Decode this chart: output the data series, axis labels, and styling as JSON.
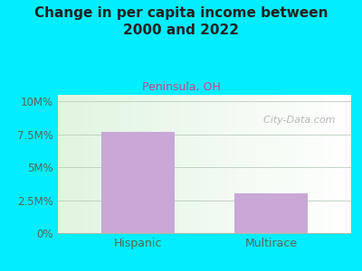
{
  "title": "Change in per capita income between\n2000 and 2022",
  "subtitle": "Peninsula, OH",
  "categories": [
    "Hispanic",
    "Multirace"
  ],
  "values": [
    7.7,
    3.0
  ],
  "bar_color": "#c9a8d8",
  "outer_bg": "#00eeff",
  "title_color": "#222222",
  "subtitle_color": "#cc4488",
  "tick_color": "#556655",
  "ytick_labels": [
    "0%",
    "2.5M%",
    "5M%",
    "7.5M%",
    "10M%"
  ],
  "ytick_values": [
    0,
    2.5,
    5.0,
    7.5,
    10.0
  ],
  "ylim": [
    0,
    10.5
  ],
  "watermark": "  City-Data.com",
  "title_fontsize": 11,
  "subtitle_fontsize": 9,
  "watermark_fontsize": 8
}
